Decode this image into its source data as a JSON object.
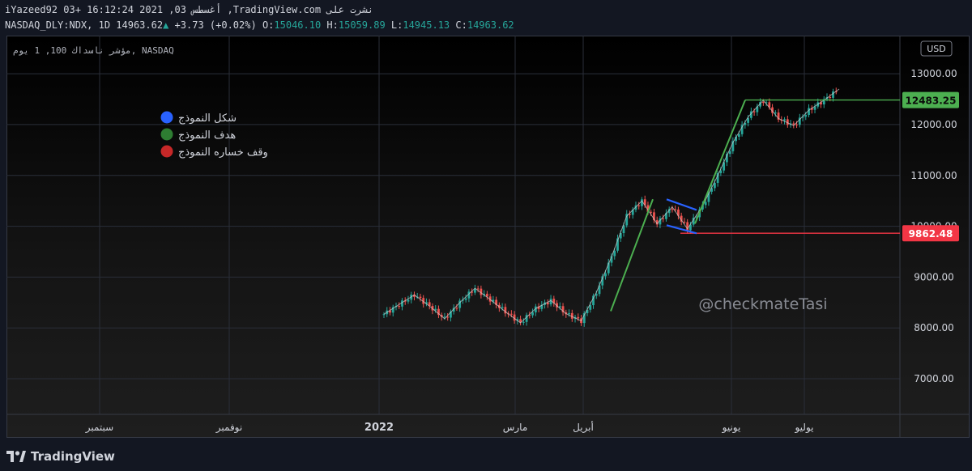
{
  "header": {
    "published": "iYazeed92 03+ 16:12:24 2021 ,03 أغسطس ,TradingView.com نشرت على",
    "symbol": "NASDAQ_DLY:NDX, 1D",
    "last": "14963.62",
    "change": "+3.73 (+0.02%)",
    "o_label": "O:",
    "o": "15046.10",
    "h_label": "H:",
    "h": "15059.89",
    "l_label": "L:",
    "l": "14945.13",
    "c_label": "C:",
    "c": "14963.62"
  },
  "legend": {
    "title": "مؤشر ناسداك 100, 1 يوم, NASDAQ",
    "items": [
      {
        "label": "شكل النموذج",
        "color": "#2962ff"
      },
      {
        "label": "هدف النموذج",
        "color": "#2e7d32"
      },
      {
        "label": "وقف خساره النموذج",
        "color": "#c62828"
      }
    ]
  },
  "watermark": "@checkmateTasi",
  "currency": "USD",
  "footer": {
    "brand": "TradingView"
  },
  "chart_data": {
    "type": "candlestick",
    "ylim": [
      6300,
      13750
    ],
    "y_ticks": [
      7000,
      8000,
      9000,
      10000,
      11000,
      12000,
      13000
    ],
    "y_tick_labels": [
      "7000.00",
      "8000.00",
      "9000.00",
      "10000.00",
      "11000.00",
      "12000.00",
      "13000.00"
    ],
    "x_labels": [
      "سبتمبر",
      "نوفمبر",
      "2022",
      "مارس",
      "أبريل",
      "يونيو",
      "يوليو"
    ],
    "price_labels": [
      {
        "value": 12483.25,
        "text": "12483.25",
        "color": "#4caf50"
      },
      {
        "value": 9862.48,
        "text": "9862.48",
        "color": "#f23645"
      }
    ],
    "pattern": {
      "flagpole_start": 8130,
      "flagpole_end": 10530,
      "target": 12483.25,
      "stop_loss": 9862.48,
      "flag_upper": [
        10530,
        10320
      ],
      "flag_lower": [
        10020,
        9860
      ]
    },
    "price_path": [
      8270,
      8460,
      8650,
      8430,
      8180,
      8500,
      8780,
      8560,
      8320,
      8100,
      8380,
      8540,
      8280,
      8140,
      8700,
      9400,
      10200,
      10500,
      10050,
      10380,
      9950,
      10400,
      11000,
      11650,
      12150,
      12480,
      12120,
      11980,
      12280,
      12480,
      12700
    ]
  }
}
